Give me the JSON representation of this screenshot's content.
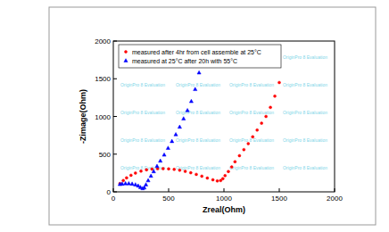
{
  "chart_data": {
    "type": "scatter",
    "x_label": "Zreal(Ohm)",
    "y_label": "-Zimage(Ohm)",
    "annotations": [
      "OriginPro 8 Evaluation"
    ],
    "xlim": [
      0,
      2000
    ],
    "xticks": [
      0,
      500,
      1000,
      1500,
      2000
    ],
    "ylim": [
      0,
      2000
    ],
    "yticks": [
      0,
      500,
      1000,
      1500,
      2000
    ],
    "grid": false,
    "legend": "upper left",
    "series": [
      {
        "name": "measured after 4hr from cell assemble at 25°C",
        "color": "#ff0000",
        "marker": "circle",
        "x": [
          60,
          90,
          120,
          160,
          200,
          250,
          300,
          350,
          400,
          450,
          500,
          550,
          600,
          650,
          700,
          750,
          800,
          850,
          900,
          940,
          970,
          990,
          1010,
          1040,
          1070,
          1100,
          1140,
          1180,
          1220,
          1260,
          1300,
          1340,
          1380,
          1420,
          1460,
          1500
        ],
        "values": [
          110,
          150,
          185,
          220,
          250,
          275,
          292,
          302,
          307,
          308,
          305,
          298,
          287,
          272,
          253,
          232,
          208,
          183,
          160,
          145,
          150,
          175,
          215,
          270,
          330,
          400,
          480,
          560,
          640,
          730,
          820,
          910,
          1000,
          1120,
          1270,
          1450
        ]
      },
      {
        "name": "measured at 25°C after 20h with 55°C",
        "color": "#0000ff",
        "marker": "triangle",
        "x": [
          60,
          80,
          110,
          140,
          170,
          200,
          225,
          245,
          265,
          280,
          295,
          315,
          340,
          365,
          395,
          425,
          460,
          495,
          530,
          565,
          600,
          635,
          670,
          705,
          740,
          775
        ],
        "values": [
          100,
          105,
          110,
          110,
          105,
          95,
          80,
          60,
          45,
          55,
          95,
          150,
          210,
          270,
          340,
          410,
          490,
          580,
          670,
          760,
          860,
          970,
          1080,
          1200,
          1360,
          1580
        ]
      }
    ]
  }
}
